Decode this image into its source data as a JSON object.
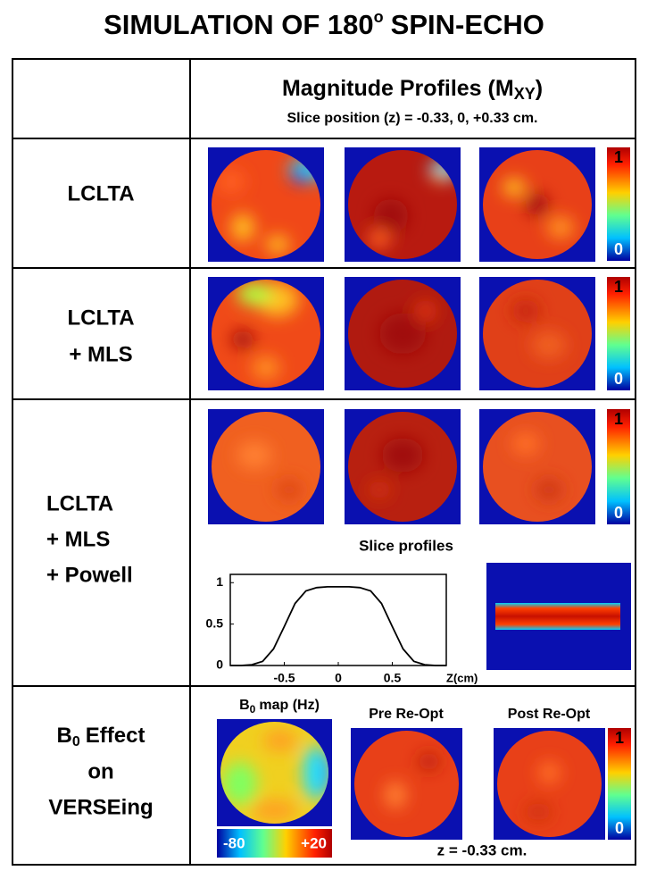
{
  "title": {
    "main": "SIMULATION OF 180",
    "superscript": "o",
    "rest": "SPIN-ECHO"
  },
  "header": {
    "title": "Magnitude Profiles (M",
    "subscript": "XY",
    "close": ")",
    "subtitle": "Slice position (z) = -0.33, 0, +0.33 cm."
  },
  "rows": [
    {
      "label": [
        "LCLTA"
      ]
    },
    {
      "label": [
        "LCLTA",
        "+ MLS"
      ]
    },
    {
      "label": [
        "LCLTA",
        "+ MLS",
        "+ Powell"
      ]
    }
  ],
  "colorbar": {
    "max": "1",
    "min": "0"
  },
  "slice_profiles": {
    "title": "Slice profiles",
    "x_label": "Z(cm)",
    "x": [
      -1,
      -0.9,
      -0.8,
      -0.7,
      -0.6,
      -0.5,
      -0.4,
      -0.3,
      -0.2,
      -0.1,
      0,
      0.1,
      0.2,
      0.3,
      0.4,
      0.5,
      0.6,
      0.7,
      0.8,
      0.9,
      1
    ],
    "y": [
      0,
      0,
      0.01,
      0.05,
      0.2,
      0.47,
      0.75,
      0.9,
      0.94,
      0.95,
      0.95,
      0.95,
      0.94,
      0.9,
      0.75,
      0.47,
      0.2,
      0.05,
      0.01,
      0,
      0
    ],
    "xlim": [
      -1,
      1
    ],
    "ylim": [
      0,
      1.1
    ],
    "xticks": [
      -0.5,
      0,
      0.5
    ],
    "yticks": [
      0,
      0.5,
      1
    ]
  },
  "b0_section": {
    "label": {
      "main": "B",
      "subscript": "0",
      "rest": "Effect",
      "line2": "on",
      "line3": "VERSEing"
    },
    "map_title": {
      "main": "B",
      "subscript": "0",
      "rest": "map (Hz)"
    },
    "colorbar": {
      "min": "-80",
      "max": "+20"
    },
    "pre": "Pre Re-Opt",
    "post": "Post Re-Opt",
    "note": "z = -0.33 cm."
  }
}
